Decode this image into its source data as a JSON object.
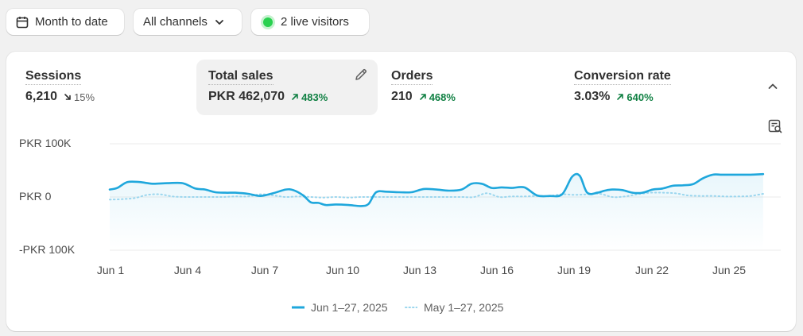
{
  "filters": {
    "date_range": "Month to date",
    "channels": "All channels",
    "live_visitors": "2 live visitors"
  },
  "metrics": [
    {
      "label": "Sessions",
      "value": "6,210",
      "delta": "15%",
      "direction": "down"
    },
    {
      "label": "Total sales",
      "value": "PKR 462,070",
      "delta": "483%",
      "direction": "up"
    },
    {
      "label": "Orders",
      "value": "210",
      "delta": "468%",
      "direction": "up"
    },
    {
      "label": "Conversion rate",
      "value": "3.03%",
      "delta": "640%",
      "direction": "up"
    }
  ],
  "colors": {
    "current_series": "#1fa7dc",
    "previous_series": "#9bd6ee",
    "positive": "#108043",
    "live": "#29d14f"
  },
  "chart_data": {
    "type": "line",
    "y_tick_labels": [
      "PKR 100K",
      "PKR 0",
      "-PKR 100K"
    ],
    "ylim": [
      -100000,
      100000
    ],
    "x_tick_labels": [
      "Jun 1",
      "Jun 4",
      "Jun 7",
      "Jun 10",
      "Jun 13",
      "Jun 16",
      "Jun 19",
      "Jun 22",
      "Jun 25"
    ],
    "grid": true,
    "legend_position": "bottom",
    "series": [
      {
        "name": "Jun 1–27, 2025",
        "style": "solid",
        "x": [
          1.0,
          1.3,
          1.7,
          2.2,
          2.7,
          3.3,
          3.9,
          4.4,
          4.8,
          5.2,
          5.6,
          6.0,
          6.5,
          7.0,
          7.5,
          8.0,
          8.3,
          8.7,
          9.0,
          9.3,
          9.6,
          10.0,
          10.5,
          11.0,
          11.3,
          11.6,
          12.0,
          12.5,
          13.0,
          13.5,
          14.0,
          14.5,
          15.0,
          15.4,
          15.8,
          16.2,
          16.6,
          17.0,
          17.5,
          18.0,
          18.5,
          19.0,
          19.4,
          19.7,
          20.0,
          20.4,
          20.7,
          21.0,
          21.4,
          21.8,
          22.2,
          22.6,
          23.0,
          23.4,
          23.8,
          24.2,
          24.6,
          25.0,
          25.3,
          25.6,
          26.0,
          26.5,
          27.0
        ],
        "y": [
          14000,
          17000,
          28000,
          28000,
          25000,
          26000,
          26000,
          16000,
          14000,
          9000,
          8000,
          8000,
          6000,
          2000,
          7000,
          14000,
          13000,
          3000,
          -10000,
          -11000,
          -15000,
          -14000,
          -15000,
          -17000,
          -13000,
          9000,
          10000,
          9000,
          9000,
          15000,
          14000,
          12000,
          14000,
          25000,
          25000,
          17000,
          18000,
          17000,
          18000,
          3000,
          2000,
          5000,
          38000,
          40000,
          8000,
          8000,
          12000,
          14000,
          13000,
          8000,
          8000,
          14000,
          16000,
          21000,
          22000,
          24000,
          35000,
          42000,
          42000,
          42000,
          42000,
          42000,
          43000
        ]
      },
      {
        "name": "May 1–27, 2025",
        "style": "dotted",
        "x": [
          1.0,
          1.5,
          2.0,
          2.5,
          3.0,
          3.5,
          4.0,
          4.5,
          5.0,
          5.5,
          6.0,
          6.5,
          7.0,
          7.5,
          8.0,
          8.5,
          9.0,
          9.5,
          10.0,
          10.5,
          11.0,
          11.5,
          12.0,
          12.5,
          13.0,
          13.5,
          14.0,
          14.5,
          15.0,
          15.5,
          16.0,
          16.5,
          17.0,
          17.5,
          18.0,
          18.5,
          19.0,
          19.5,
          20.0,
          20.5,
          21.0,
          21.5,
          22.0,
          22.5,
          23.0,
          23.5,
          24.0,
          24.5,
          25.0,
          25.5,
          26.0,
          26.5,
          27.0
        ],
        "y": [
          -5000,
          -4000,
          -2000,
          4000,
          5000,
          1000,
          0,
          0,
          0,
          0,
          1000,
          1000,
          5000,
          3000,
          0,
          1000,
          0,
          -1000,
          0,
          -1000,
          0,
          0,
          0,
          0,
          0,
          0,
          0,
          0,
          0,
          0,
          7000,
          0,
          1000,
          1000,
          2000,
          2000,
          5000,
          4000,
          5000,
          6000,
          0,
          1000,
          5000,
          8000,
          8000,
          7000,
          3000,
          2000,
          2000,
          1000,
          1000,
          2000,
          6000
        ]
      }
    ]
  }
}
